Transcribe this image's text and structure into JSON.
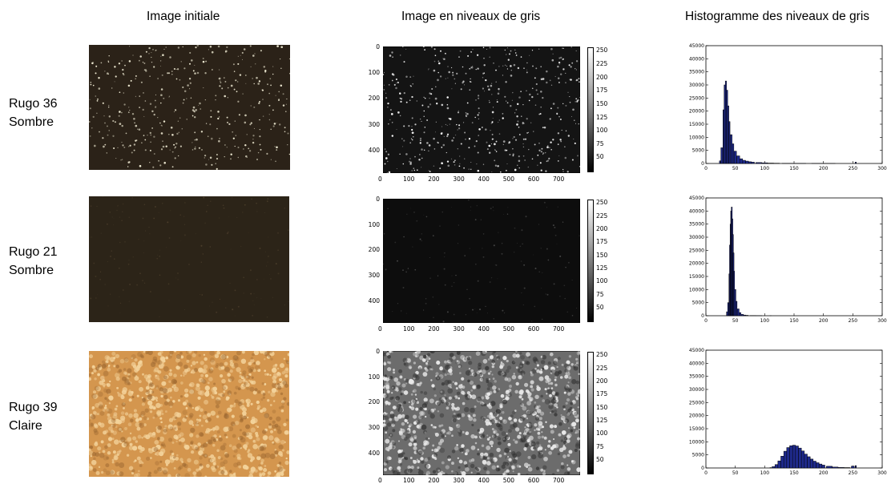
{
  "headers": {
    "col1": "Image initiale",
    "col2": "Image en niveaux de gris",
    "col3": "Histogramme des niveaux de gris"
  },
  "rows": [
    {
      "line1": "Rugo 36",
      "line2": "Sombre",
      "photo_color": "#2b2218",
      "speck_color": "#f4f0d8"
    },
    {
      "line1": "Rugo 21",
      "line2": "Sombre",
      "photo_color": "#2c2418",
      "speck_color": "#4a3d2a"
    },
    {
      "line1": "Rugo 39",
      "line2": "Claire",
      "photo_color": "#d4964e",
      "speck_color": "#f3d29a"
    }
  ],
  "gray_axes": {
    "y_ticks": [
      "0",
      "100",
      "200",
      "300",
      "400"
    ],
    "x_ticks": [
      "0",
      "100",
      "200",
      "300",
      "400",
      "500",
      "600",
      "700"
    ],
    "colorbar_ticks": [
      "250",
      "225",
      "200",
      "175",
      "150",
      "125",
      "100",
      "75",
      "50"
    ]
  },
  "chart_data": [
    {
      "type": "bar",
      "xlim": [
        0,
        300
      ],
      "ylim": [
        0,
        45000
      ],
      "x_ticks": [
        0,
        50,
        100,
        150,
        200,
        250,
        300
      ],
      "y_ticks": [
        0,
        5000,
        10000,
        15000,
        20000,
        25000,
        30000,
        35000,
        40000,
        45000
      ],
      "grid": false,
      "x": [
        24,
        27,
        30,
        32,
        34,
        36,
        38,
        40,
        43,
        46,
        50,
        55,
        60,
        65,
        70,
        75,
        80,
        90,
        100,
        110,
        120,
        140,
        160,
        200,
        255
      ],
      "values": [
        1000,
        6000,
        20500,
        30000,
        31500,
        28000,
        22000,
        16000,
        11000,
        7500,
        4700,
        2900,
        1800,
        1200,
        900,
        650,
        500,
        350,
        250,
        150,
        100,
        60,
        40,
        20,
        500
      ],
      "bar_color": "#1f2a8c"
    },
    {
      "type": "bar",
      "xlim": [
        0,
        300
      ],
      "ylim": [
        0,
        45000
      ],
      "x_ticks": [
        0,
        50,
        100,
        150,
        200,
        250,
        300
      ],
      "y_ticks": [
        0,
        5000,
        10000,
        15000,
        20000,
        25000,
        30000,
        35000,
        40000,
        45000
      ],
      "grid": false,
      "x": [
        36,
        38,
        40,
        41,
        42,
        43,
        44,
        45,
        46,
        47,
        48,
        50,
        52,
        55,
        58,
        62,
        66,
        70,
        80,
        90,
        110
      ],
      "values": [
        1500,
        5000,
        16000,
        27000,
        35000,
        40000,
        41500,
        37000,
        31000,
        24000,
        17000,
        10000,
        5500,
        2600,
        1200,
        500,
        250,
        150,
        80,
        40,
        10
      ],
      "bar_color": "#1f2a8c"
    },
    {
      "type": "bar",
      "xlim": [
        0,
        300
      ],
      "ylim": [
        0,
        45000
      ],
      "x_ticks": [
        0,
        50,
        100,
        150,
        200,
        250,
        300
      ],
      "y_ticks": [
        0,
        5000,
        10000,
        15000,
        20000,
        25000,
        30000,
        35000,
        40000,
        45000
      ],
      "grid": false,
      "x": [
        110,
        115,
        120,
        125,
        130,
        135,
        140,
        145,
        150,
        155,
        160,
        165,
        170,
        175,
        180,
        185,
        190,
        195,
        200,
        210,
        220,
        230,
        240,
        250,
        255
      ],
      "values": [
        150,
        500,
        1300,
        2700,
        4500,
        6400,
        7800,
        8500,
        8700,
        8400,
        7600,
        6500,
        5300,
        4300,
        3400,
        2600,
        2000,
        1500,
        1100,
        650,
        350,
        200,
        150,
        700,
        900
      ],
      "bar_color": "#1f2a8c"
    }
  ]
}
